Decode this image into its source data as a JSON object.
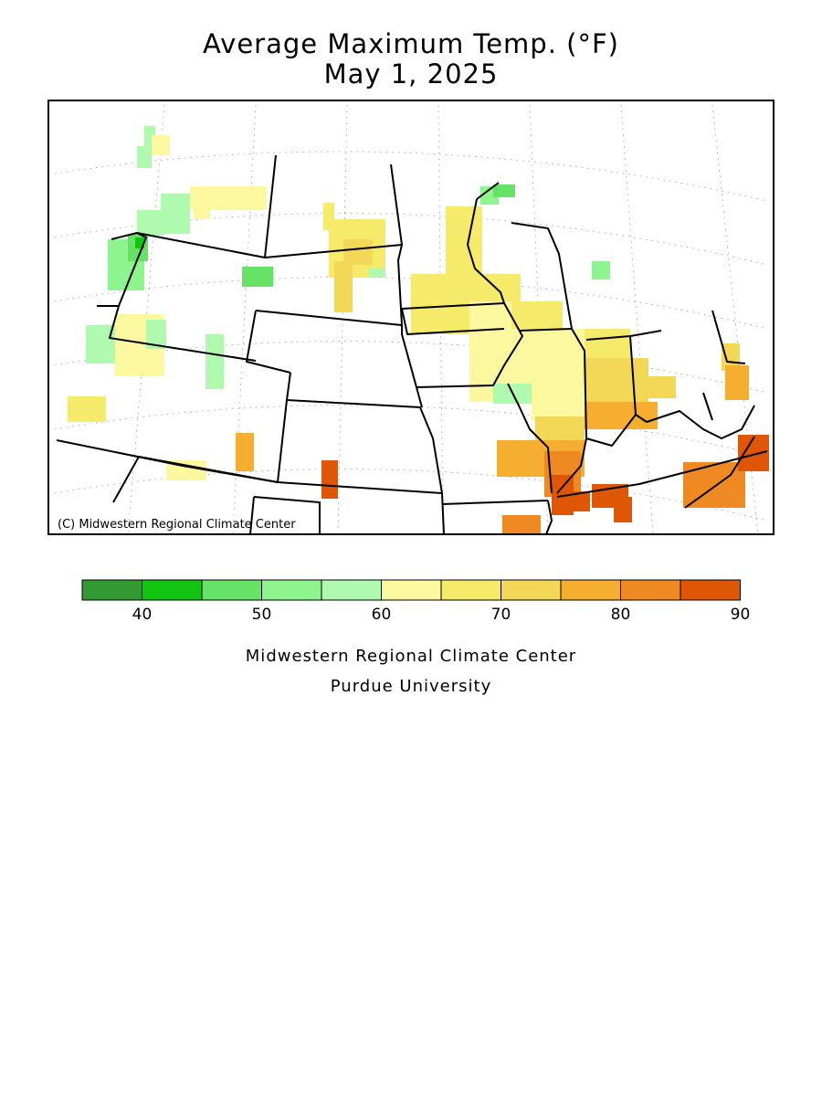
{
  "title": {
    "line1": "Average Maximum Temp. (°F)",
    "line2": "May 1, 2025"
  },
  "map": {
    "copyright": "(C) Midwestern Regional Climate Center"
  },
  "legend": {
    "ticks": [
      "40",
      "50",
      "60",
      "70",
      "80",
      "90"
    ],
    "bins": [
      {
        "color": "#339933"
      },
      {
        "color": "#11c411"
      },
      {
        "color": "#66e266"
      },
      {
        "color": "#8ef58e"
      },
      {
        "color": "#b0fab0"
      },
      {
        "color": "#fbf8a0"
      },
      {
        "color": "#f6ea6a"
      },
      {
        "color": "#f3d858"
      },
      {
        "color": "#f5ae30"
      },
      {
        "color": "#ef8a22"
      },
      {
        "color": "#df5606"
      }
    ]
  },
  "credits": {
    "line1": "Midwestern Regional Climate Center",
    "line2": "Purdue University"
  }
}
